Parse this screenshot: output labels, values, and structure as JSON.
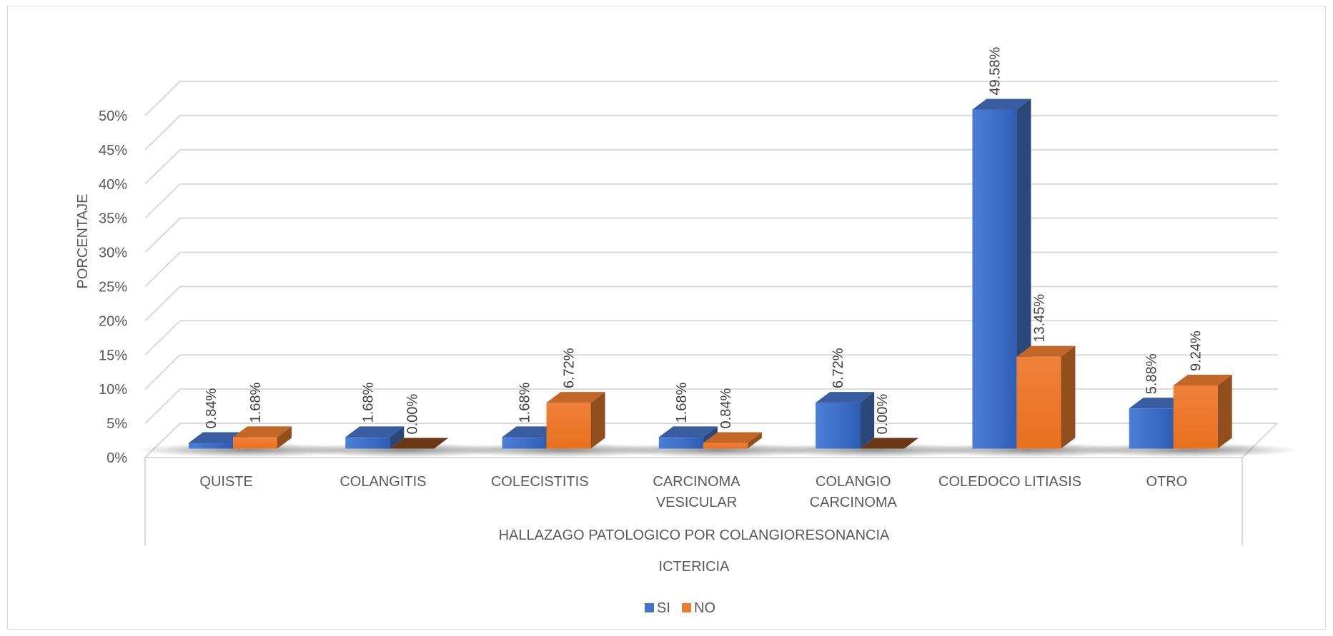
{
  "chart_data": {
    "type": "bar",
    "categories": [
      [
        "QUISTE"
      ],
      [
        "COLANGITIS"
      ],
      [
        "COLECISTITIS"
      ],
      [
        "CARCINOMA",
        "VESICULAR"
      ],
      [
        "COLANGIO",
        "CARCINOMA"
      ],
      [
        "COLEDOCO LITIASIS"
      ],
      [
        "OTRO"
      ]
    ],
    "series": [
      {
        "name": "SI",
        "color": "#4472c4",
        "values": [
          0.84,
          1.68,
          1.68,
          1.68,
          6.72,
          49.58,
          5.88
        ],
        "labels": [
          "0.84%",
          "1.68%",
          "1.68%",
          "1.68%",
          "6.72%",
          "49.58%",
          "5.88%"
        ]
      },
      {
        "name": "NO",
        "color": "#ed7d31",
        "values": [
          1.68,
          0.0,
          6.72,
          0.84,
          0.0,
          13.45,
          9.24
        ],
        "labels": [
          "1.68%",
          "0.00%",
          "6.72%",
          "0.84%",
          "0.00%",
          "13.45%",
          "9.24%"
        ]
      }
    ],
    "y_ticks": [
      "0%",
      "5%",
      "10%",
      "15%",
      "20%",
      "25%",
      "30%",
      "35%",
      "40%",
      "45%",
      "50%"
    ],
    "ylim": [
      0,
      50
    ],
    "ylabel": "PORCENTAJE",
    "xlabel": "HALLAZAGO PATOLOGICO POR COLANGIORESONANCIA",
    "xlabel2": "ICTERICIA",
    "legend_position": "bottom",
    "grid": true,
    "style": "3d-column"
  }
}
